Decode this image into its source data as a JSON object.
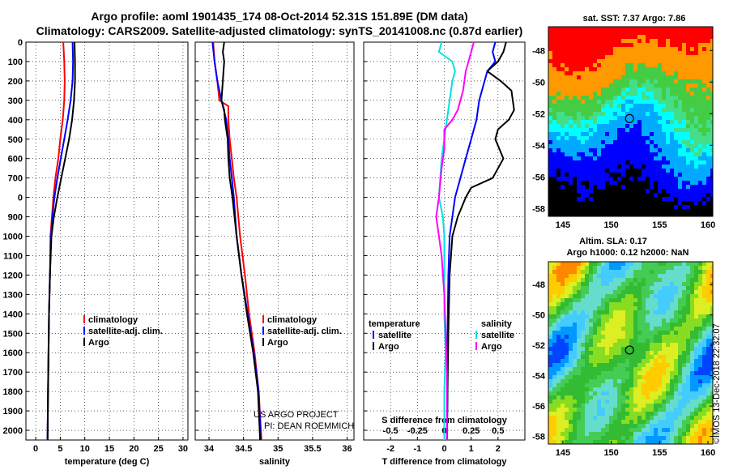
{
  "title_line1": "Argo profile: aoml 1901435_174 08-Oct-2014 52.31S 151.89E (DM data)",
  "title_line2": "Climatology: CARS2009. Satellite-adjusted climatology: synTS_20141008.nc (0.87d earlier)",
  "sst_title": "sat. SST: 7.37 Argo: 7.86",
  "sla_title1": "Altim. SLA: 0.17",
  "sla_title2": "Argo h1000: 0.12 h2000: NaN",
  "watermark": "©IMOS 13-Dec-2018 22:32:07",
  "credit_line1": "US ARGO PROJECT",
  "credit_line2": "PI: DEAN ROEMMICH",
  "colors": {
    "climatology": "#ff0000",
    "satellite": "#0000ff",
    "argo": "#000000",
    "sal_sat": "#00e0e0",
    "sal_argo": "#ff00ff"
  },
  "depth_ticks": [
    "0",
    "100",
    "200",
    "300",
    "400",
    "500",
    "600",
    "700",
    "0",
    "900",
    "1000",
    "1100",
    "1200",
    "1300",
    "1400",
    "1500",
    "1600",
    "1700",
    "1800",
    "1900",
    "2000"
  ],
  "chart_data": [
    {
      "type": "line",
      "xlabel": "temperature (deg C)",
      "xlim": [
        -2,
        31
      ],
      "ylim": [
        2050,
        0
      ],
      "xticks": [
        "0",
        "5",
        "10",
        "15",
        "20",
        "25",
        "30"
      ],
      "legend": [
        "climatology",
        "satellite-adj. clim.",
        "Argo"
      ],
      "series": [
        {
          "name": "climatology",
          "points": [
            [
              5.6,
              0
            ],
            [
              5.8,
              100
            ],
            [
              5.9,
              200
            ],
            [
              5.8,
              300
            ],
            [
              5.5,
              400
            ],
            [
              5.0,
              500
            ],
            [
              4.6,
              600
            ],
            [
              4.0,
              700
            ],
            [
              3.6,
              800
            ],
            [
              3.3,
              900
            ],
            [
              3.0,
              1000
            ],
            [
              2.9,
              1200
            ],
            [
              2.7,
              1400
            ],
            [
              2.6,
              1600
            ],
            [
              2.5,
              1800
            ],
            [
              2.4,
              2050
            ]
          ]
        },
        {
          "name": "satellite-adj. clim.",
          "points": [
            [
              7.5,
              0
            ],
            [
              7.6,
              100
            ],
            [
              7.5,
              200
            ],
            [
              7.1,
              300
            ],
            [
              6.5,
              400
            ],
            [
              5.8,
              500
            ],
            [
              5.1,
              600
            ],
            [
              4.4,
              700
            ],
            [
              3.8,
              800
            ],
            [
              3.4,
              900
            ],
            [
              3.1,
              1000
            ],
            [
              2.9,
              1200
            ],
            [
              2.7,
              1400
            ],
            [
              2.6,
              1600
            ],
            [
              2.5,
              1800
            ],
            [
              2.4,
              2050
            ]
          ]
        },
        {
          "name": "Argo",
          "points": [
            [
              7.9,
              0
            ],
            [
              8.0,
              100
            ],
            [
              8.0,
              200
            ],
            [
              7.8,
              300
            ],
            [
              7.4,
              400
            ],
            [
              6.8,
              500
            ],
            [
              6.0,
              600
            ],
            [
              5.2,
              700
            ],
            [
              4.4,
              800
            ],
            [
              3.7,
              900
            ],
            [
              3.2,
              1000
            ],
            [
              2.9,
              1200
            ],
            [
              2.7,
              1400
            ],
            [
              2.6,
              1600
            ],
            [
              2.5,
              1800
            ],
            [
              2.4,
              2050
            ]
          ]
        }
      ]
    },
    {
      "type": "line",
      "xlabel": "salinity",
      "xlim": [
        33.8,
        36.1
      ],
      "ylim": [
        2050,
        0
      ],
      "xticks": [
        "34",
        "34.5",
        "35",
        "35.5",
        "36"
      ],
      "legend": [
        "climatology",
        "satellite-adj. clim.",
        "Argo"
      ],
      "series": [
        {
          "name": "climatology",
          "points": [
            [
              34.06,
              0
            ],
            [
              34.08,
              100
            ],
            [
              34.12,
              200
            ],
            [
              34.15,
              300
            ],
            [
              34.28,
              330
            ],
            [
              34.28,
              400
            ],
            [
              34.3,
              500
            ],
            [
              34.33,
              600
            ],
            [
              34.36,
              700
            ],
            [
              34.4,
              800
            ],
            [
              34.45,
              1000
            ],
            [
              34.52,
              1200
            ],
            [
              34.58,
              1400
            ],
            [
              34.66,
              1600
            ],
            [
              34.72,
              1800
            ],
            [
              34.76,
              2050
            ]
          ]
        },
        {
          "name": "satellite-adj. clim.",
          "points": [
            [
              34.05,
              0
            ],
            [
              34.08,
              100
            ],
            [
              34.12,
              200
            ],
            [
              34.18,
              300
            ],
            [
              34.25,
              400
            ],
            [
              34.28,
              500
            ],
            [
              34.3,
              600
            ],
            [
              34.33,
              700
            ],
            [
              34.36,
              800
            ],
            [
              34.4,
              1000
            ],
            [
              34.47,
              1200
            ],
            [
              34.56,
              1400
            ],
            [
              34.65,
              1600
            ],
            [
              34.72,
              1800
            ],
            [
              34.75,
              2050
            ]
          ]
        },
        {
          "name": "Argo",
          "points": [
            [
              34.22,
              0
            ],
            [
              34.2,
              50
            ],
            [
              34.22,
              100
            ],
            [
              34.21,
              150
            ],
            [
              34.2,
              200
            ],
            [
              34.18,
              300
            ],
            [
              34.22,
              350
            ],
            [
              34.23,
              400
            ],
            [
              34.27,
              500
            ],
            [
              34.28,
              600
            ],
            [
              34.3,
              700
            ],
            [
              34.34,
              800
            ],
            [
              34.4,
              1000
            ],
            [
              34.47,
              1200
            ],
            [
              34.55,
              1400
            ],
            [
              34.64,
              1600
            ],
            [
              34.71,
              1800
            ],
            [
              34.74,
              2050
            ]
          ]
        }
      ]
    },
    {
      "type": "line",
      "xlabel": "T difference from climatology",
      "xlabel_top": "S difference from climatology",
      "xlim": [
        -3.0,
        3.0
      ],
      "ylim": [
        2050,
        0
      ],
      "xticks": [
        "-2",
        "-1",
        "0",
        "1",
        "2"
      ],
      "xticks_top": [
        {
          "label": "-0.5",
          "value": -2
        },
        {
          "label": "-0.25",
          "value": -1
        },
        {
          "label": "0",
          "value": 0
        },
        {
          "label": "0.25",
          "value": 1
        },
        {
          "label": "0.5",
          "value": 2
        }
      ],
      "legend_temperature": {
        "heading": "temperature",
        "items": [
          "satellite",
          "Argo"
        ]
      },
      "legend_salinity": {
        "heading": "salinity",
        "items": [
          "satellite",
          "Argo"
        ]
      },
      "series": [
        {
          "name": "temperature satellite",
          "points": [
            [
              1.9,
              0
            ],
            [
              1.8,
              50
            ],
            [
              1.9,
              100
            ],
            [
              1.6,
              150
            ],
            [
              1.5,
              200
            ],
            [
              1.3,
              300
            ],
            [
              1.2,
              400
            ],
            [
              1.1,
              450
            ],
            [
              1.0,
              500
            ],
            [
              0.8,
              600
            ],
            [
              0.6,
              700
            ],
            [
              0.4,
              800
            ],
            [
              0.3,
              900
            ],
            [
              0.2,
              1000
            ],
            [
              0.15,
              1200
            ],
            [
              0.12,
              1500
            ],
            [
              0.12,
              1800
            ],
            [
              0.1,
              2050
            ]
          ]
        },
        {
          "name": "temperature Argo",
          "points": [
            [
              2.3,
              0
            ],
            [
              2.2,
              50
            ],
            [
              2.0,
              100
            ],
            [
              1.6,
              150
            ],
            [
              2.1,
              200
            ],
            [
              2.5,
              250
            ],
            [
              2.6,
              350
            ],
            [
              2.4,
              400
            ],
            [
              2.0,
              450
            ],
            [
              1.9,
              500
            ],
            [
              2.2,
              600
            ],
            [
              1.8,
              700
            ],
            [
              1.0,
              750
            ],
            [
              0.8,
              800
            ],
            [
              0.5,
              900
            ],
            [
              0.3,
              1000
            ],
            [
              0.2,
              1200
            ],
            [
              0.15,
              1500
            ],
            [
              0.12,
              1800
            ],
            [
              0.1,
              2050
            ]
          ]
        },
        {
          "name": "salinity satellite",
          "points": [
            [
              -0.1,
              0
            ],
            [
              -0.2,
              50
            ],
            [
              0.3,
              100
            ],
            [
              0.4,
              150
            ],
            [
              0.3,
              200
            ],
            [
              0.2,
              300
            ],
            [
              0.1,
              400
            ],
            [
              0.0,
              500
            ],
            [
              -0.1,
              600
            ],
            [
              -0.15,
              700
            ],
            [
              -0.2,
              800
            ],
            [
              -0.05,
              900
            ],
            [
              0.0,
              1000
            ],
            [
              0.0,
              1200
            ],
            [
              0.0,
              1400
            ],
            [
              0.05,
              1600
            ],
            [
              0.0,
              1800
            ],
            [
              0.0,
              2050
            ]
          ]
        },
        {
          "name": "salinity Argo",
          "points": [
            [
              1.1,
              0
            ],
            [
              1.0,
              50
            ],
            [
              0.9,
              100
            ],
            [
              0.8,
              150
            ],
            [
              0.7,
              250
            ],
            [
              0.6,
              300
            ],
            [
              0.5,
              350
            ],
            [
              0.3,
              400
            ],
            [
              0.0,
              450
            ],
            [
              0.0,
              550
            ],
            [
              -0.1,
              650
            ],
            [
              -0.2,
              800
            ],
            [
              -0.3,
              900
            ],
            [
              -0.2,
              1000
            ],
            [
              -0.1,
              1100
            ],
            [
              0.0,
              1300
            ],
            [
              0.05,
              1500
            ],
            [
              0.1,
              1700
            ],
            [
              0.1,
              2050
            ]
          ]
        }
      ]
    },
    {
      "type": "heatmap",
      "title": "sat. SST: 7.37 Argo: 7.86",
      "xlim": [
        143.5,
        160.5
      ],
      "ylim": [
        -58.5,
        -46.5
      ],
      "xticks": [
        "145",
        "150",
        "155",
        "160"
      ],
      "yticks": [
        "-48",
        "-50",
        "-52",
        "-54",
        "-56",
        "-58"
      ],
      "marker": [
        151.89,
        -52.31
      ]
    },
    {
      "type": "heatmap",
      "title": "Altim. SLA: 0.17",
      "xlim": [
        143.5,
        160.5
      ],
      "ylim": [
        -58.5,
        -46.5
      ],
      "xticks": [
        "145",
        "150",
        "155",
        "160"
      ],
      "yticks": [
        "-48",
        "-50",
        "-52",
        "-54",
        "-56",
        "-58"
      ],
      "marker": [
        151.89,
        -52.31
      ]
    }
  ]
}
